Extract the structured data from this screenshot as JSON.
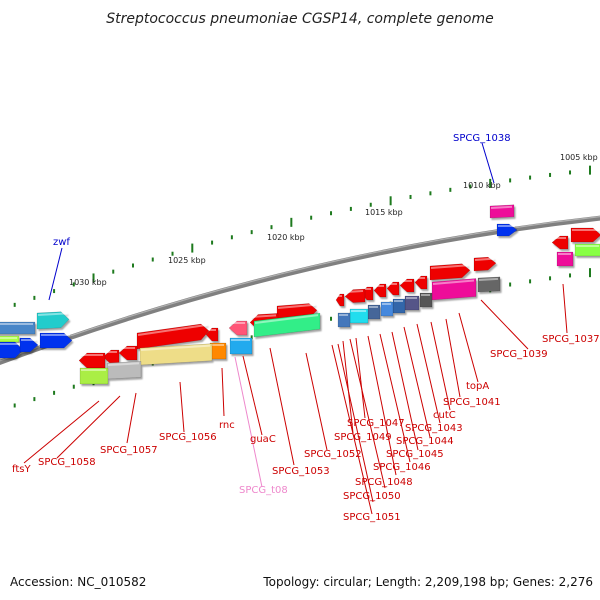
{
  "title": "Streptococcus pneumoniae CGSP14, complete genome",
  "footer": {
    "accession": "Accession: NC_010582",
    "summary": "Topology: circular; Length: 2,209,198 bp; Genes: 2,276"
  },
  "ticks": [
    "1005 kbp",
    "1010 kbp",
    "1015 kbp",
    "1020 kbp",
    "1025 kbp",
    "1030 kbp"
  ],
  "colors": {
    "backbone": "#808080",
    "tick": "#1e7a1e",
    "label_red": "#cc0000",
    "label_blue": "#0000cc",
    "label_pink": "#ee88cc"
  },
  "labels": [
    "SPCG_1038",
    "zwf",
    "SPCG_1037",
    "SPCG_1039",
    "topA",
    "SPCG_1041",
    "cutC",
    "SPCG_1043",
    "SPCG_1044",
    "SPCG_1045",
    "SPCG_1046",
    "SPCG_1047",
    "SPCG_1048",
    "SPCG_1049",
    "SPCG_1050",
    "SPCG_1051",
    "SPCG_1052",
    "SPCG_1053",
    "SPCG_t08",
    "guaC",
    "rnc",
    "SPCG_1056",
    "SPCG_1057",
    "SPCG_1058",
    "ftsY"
  ]
}
